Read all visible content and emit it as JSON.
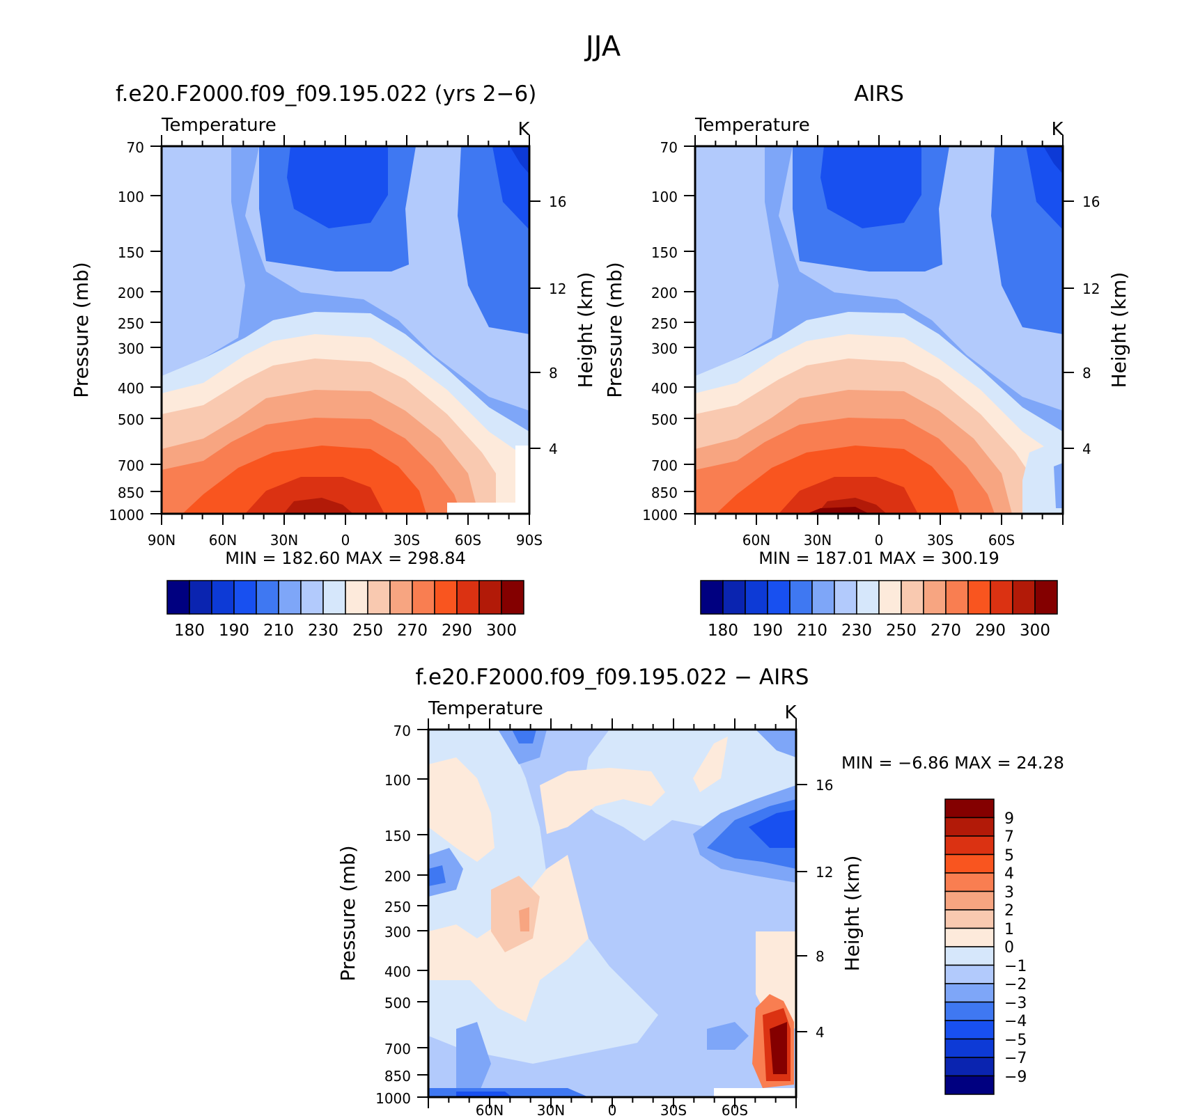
{
  "figure": {
    "title": "JJA"
  },
  "colors": {
    "abs": [
      "#000080",
      "#0a24b0",
      "#0d3ad6",
      "#1850f0",
      "#3f78f2",
      "#7ea6f8",
      "#b2cafc",
      "#d6e7fb",
      "#fdeadb",
      "#f9c9b0",
      "#f7a581",
      "#f97e51",
      "#f9551f",
      "#db3212",
      "#b21a08",
      "#840000"
    ],
    "diff": [
      "#000080",
      "#0a24b0",
      "#0d3ad6",
      "#1850f0",
      "#3f78f2",
      "#7ea6f8",
      "#b2cafc",
      "#d6e7fb",
      "#fdeadb",
      "#f9c9b0",
      "#f7a581",
      "#f97e51",
      "#f9551f",
      "#db3212",
      "#b21a08",
      "#840000"
    ]
  },
  "chart_data": [
    {
      "id": "model",
      "type": "contour",
      "title": "f.e20.F2000.f09_f09.195.022 (yrs 2−6)",
      "variable": "Temperature",
      "units": "K",
      "ylabel": "Pressure (mb)",
      "ylabel_right": "Height (km)",
      "y_ticks": [
        "70",
        "100",
        "150",
        "200",
        "250",
        "300",
        "400",
        "500",
        "700",
        "850",
        "1000"
      ],
      "y_ticks_right": [
        "16",
        "12",
        "8",
        "4"
      ],
      "x_ticks": [
        "90N",
        "60N",
        "30N",
        "0",
        "30S",
        "60S",
        "90S"
      ],
      "min_max": "MIN =  182.60   MAX =  298.84",
      "colorbar_labels": [
        "180",
        "190",
        "210",
        "230",
        "250",
        "270",
        "290",
        "300"
      ],
      "summary": {
        "min": 182.6,
        "max": 298.84
      }
    },
    {
      "id": "airs",
      "type": "contour",
      "title": "AIRS",
      "variable": "Temperature",
      "units": "K",
      "ylabel": "Pressure (mb)",
      "ylabel_right": "Height (km)",
      "y_ticks": [
        "70",
        "100",
        "150",
        "200",
        "250",
        "300",
        "400",
        "500",
        "700",
        "850",
        "1000"
      ],
      "y_ticks_right": [
        "16",
        "12",
        "8",
        "4"
      ],
      "x_ticks": [
        "60N",
        "30N",
        "0",
        "30S",
        "60S"
      ],
      "min_max": "MIN =  187.01   MAX =  300.19",
      "colorbar_labels": [
        "180",
        "190",
        "210",
        "230",
        "250",
        "270",
        "290",
        "300"
      ],
      "summary": {
        "min": 187.01,
        "max": 300.19
      }
    },
    {
      "id": "diff",
      "type": "contour",
      "title": "f.e20.F2000.f09_f09.195.022 − AIRS",
      "variable": "Temperature",
      "units": "K",
      "ylabel": "Pressure (mb)",
      "ylabel_right": "Height (km)",
      "y_ticks": [
        "70",
        "100",
        "150",
        "200",
        "250",
        "300",
        "400",
        "500",
        "700",
        "850",
        "1000"
      ],
      "y_ticks_right": [
        "16",
        "12",
        "8",
        "4"
      ],
      "x_ticks": [
        "60N",
        "30N",
        "0",
        "30S",
        "60S"
      ],
      "min_max": "MIN =    −6.86   MAX =    24.28",
      "colorbar_labels": [
        "9",
        "7",
        "5",
        "4",
        "3",
        "2",
        "1",
        "0",
        "−1",
        "−2",
        "−3",
        "−4",
        "−5",
        "−7",
        "−9"
      ],
      "summary": {
        "min": -6.86,
        "max": 24.28
      }
    }
  ]
}
